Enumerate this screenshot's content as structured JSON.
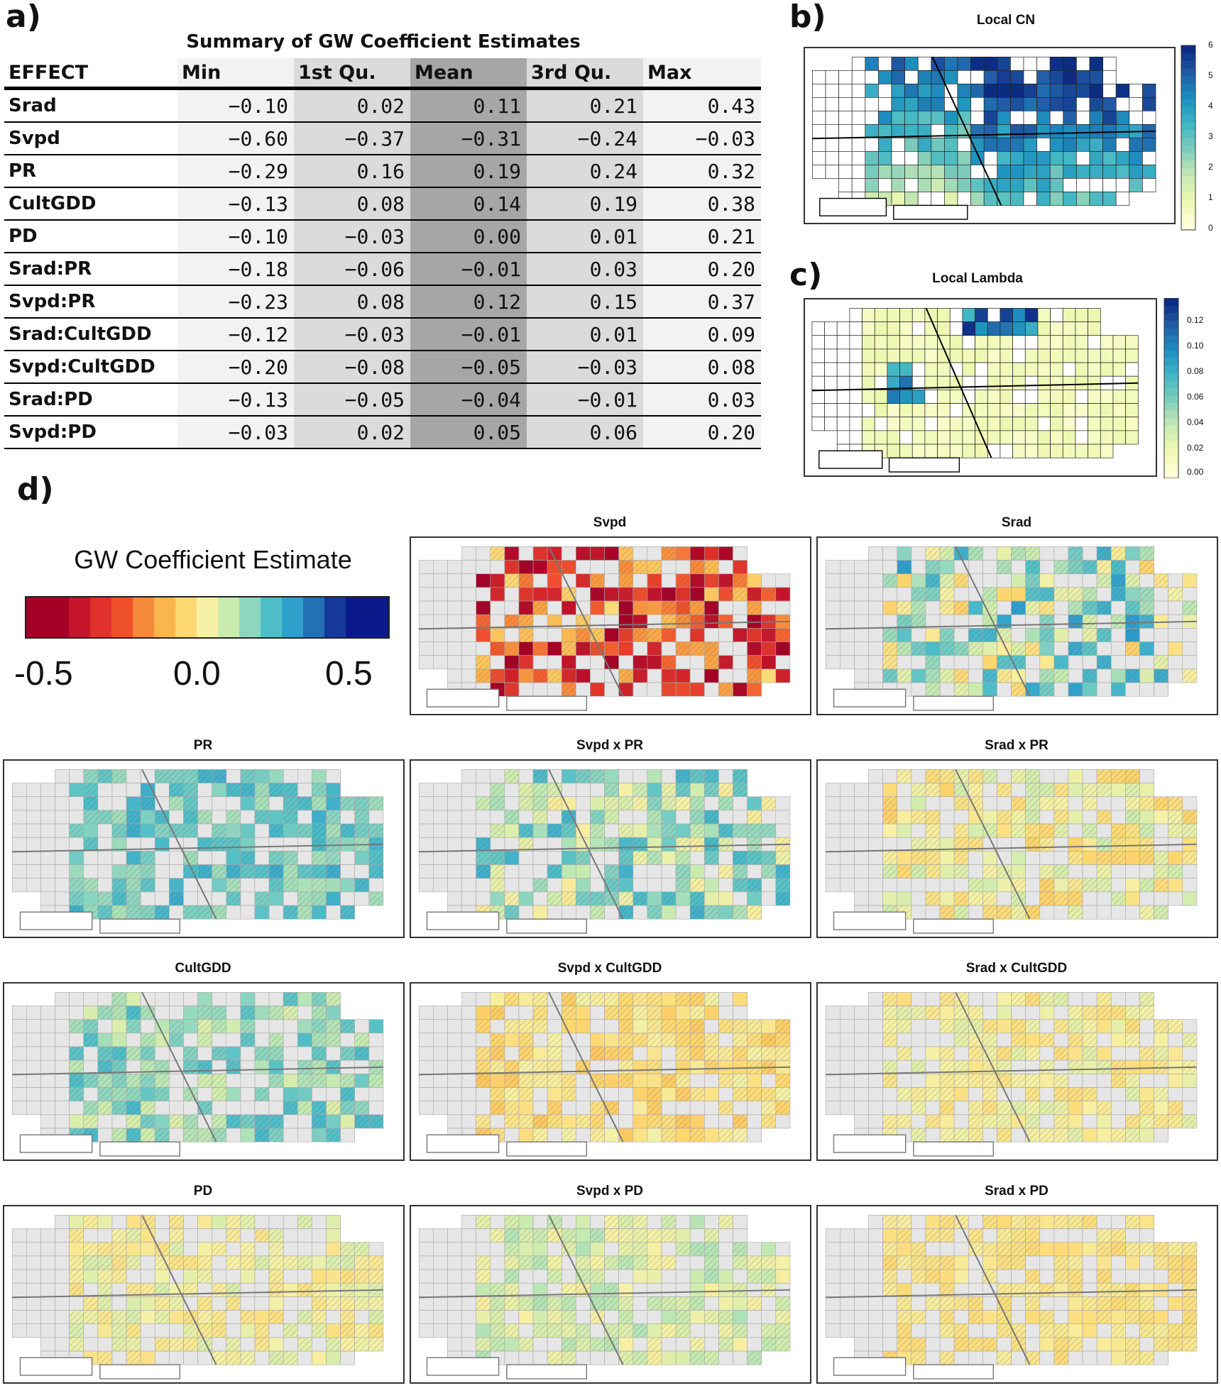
{
  "panel_labels": {
    "a": "a)",
    "b": "b)",
    "c": "c)",
    "d": "d)"
  },
  "table": {
    "title": "Summary of GW Coefficient Estimates",
    "columns": [
      "EFFECT",
      "Min",
      "1st Qu.",
      "Mean",
      "3rd Qu.",
      "Max"
    ],
    "rows": [
      [
        "Srad",
        "−0.10",
        "0.02",
        "0.11",
        "0.21",
        "0.43"
      ],
      [
        "Svpd",
        "−0.60",
        "−0.37",
        "−0.31",
        "−0.24",
        "−0.03"
      ],
      [
        "PR",
        "−0.29",
        "0.16",
        "0.19",
        "0.24",
        "0.32"
      ],
      [
        "CultGDD",
        "−0.13",
        "0.08",
        "0.14",
        "0.19",
        "0.38"
      ],
      [
        "PD",
        "−0.10",
        "−0.03",
        "0.00",
        "0.01",
        "0.21"
      ],
      [
        "Srad:PR",
        "−0.18",
        "−0.06",
        "−0.01",
        "0.03",
        "0.20"
      ],
      [
        "Svpd:PR",
        "−0.23",
        "0.08",
        "0.12",
        "0.15",
        "0.37"
      ],
      [
        "Srad:CultGDD",
        "−0.12",
        "−0.03",
        "−0.01",
        "0.01",
        "0.09"
      ],
      [
        "Svpd:CultGDD",
        "−0.20",
        "−0.08",
        "−0.05",
        "−0.03",
        "0.08"
      ],
      [
        "Srad:PD",
        "−0.13",
        "−0.05",
        "−0.04",
        "−0.01",
        "0.03"
      ],
      [
        "Svpd:PD",
        "−0.03",
        "0.02",
        "0.05",
        "0.06",
        "0.20"
      ]
    ]
  },
  "local_cn": {
    "title": "Local CN",
    "colorbar_ticks": [
      "6",
      "5",
      "4",
      "3",
      "2",
      "1",
      "0"
    ],
    "colors": [
      "#ffffd9",
      "#edf8b1",
      "#c7e9b4",
      "#7fcdbb",
      "#41b6c4",
      "#1d91c0",
      "#225ea8",
      "#0c2c84"
    ]
  },
  "local_lambda": {
    "title": "Local Lambda",
    "colorbar_ticks": [
      "0.12",
      "0.10",
      "0.08",
      "0.06",
      "0.04",
      "0.02",
      "0.00"
    ],
    "colors": [
      "#ffffd9",
      "#edf8b1",
      "#c7e9b4",
      "#7fcdbb",
      "#41b6c4",
      "#1d91c0",
      "#225ea8",
      "#0c2c84"
    ]
  },
  "legend": {
    "title": "GW Coefficient Estimate",
    "ticks": [
      "-0.5",
      "0.0",
      "0.5"
    ],
    "colors": [
      "#a50026",
      "#a50026",
      "#c5152a",
      "#e0302b",
      "#f0512d",
      "#f68a3a",
      "#fbb54d",
      "#fdd771",
      "#f6f1a6",
      "#c9ebb0",
      "#8fd6bf",
      "#4fbdc7",
      "#2f9fcc",
      "#2470b4",
      "#17399a",
      "#0a1a8a",
      "#0a1a8a"
    ]
  },
  "maps": [
    {
      "title": "Svpd",
      "mean": -0.31,
      "spread": 0.25
    },
    {
      "title": "Srad",
      "mean": 0.11,
      "spread": 0.2
    },
    {
      "title": "PR",
      "mean": 0.19,
      "spread": 0.08
    },
    {
      "title": "Svpd x PR",
      "mean": 0.12,
      "spread": 0.14
    },
    {
      "title": "Srad x PR",
      "mean": -0.01,
      "spread": 0.08
    },
    {
      "title": "CultGDD",
      "mean": 0.14,
      "spread": 0.1
    },
    {
      "title": "Svpd x CultGDD",
      "mean": -0.05,
      "spread": 0.06
    },
    {
      "title": "Srad x CultGDD",
      "mean": -0.01,
      "spread": 0.05
    },
    {
      "title": "PD",
      "mean": 0.0,
      "spread": 0.05
    },
    {
      "title": "Svpd x PD",
      "mean": 0.05,
      "spread": 0.06
    },
    {
      "title": "Srad x PD",
      "mean": -0.04,
      "spread": 0.03
    }
  ]
}
